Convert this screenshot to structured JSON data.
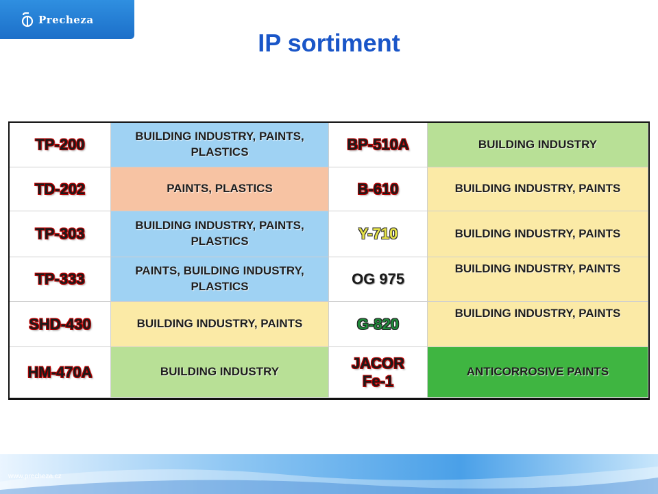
{
  "logo": {
    "text": "Precheza"
  },
  "title": "IP sortiment",
  "table": {
    "rows": [
      {
        "left_code": "TP-200",
        "left_use": "BUILDING INDUSTRY, PAINTS, PLASTICS",
        "left_color": "#9fd2f3",
        "right_code": "BP-510A",
        "right_use": "BUILDING INDUSTRY",
        "right_color": "#b8e096"
      },
      {
        "left_code": "TD-202",
        "left_use": "PAINTS, PLASTICS",
        "left_color": "#f7c3a3",
        "right_code": "B-610",
        "right_use": "BUILDING INDUSTRY, PAINTS",
        "right_color": "#fbeaa6"
      },
      {
        "left_code": "TP-303",
        "left_use": "BUILDING INDUSTRY, PAINTS, PLASTICS",
        "left_color": "#9fd2f3",
        "right_code": "Y-710",
        "right_use": "BUILDING INDUSTRY, PAINTS",
        "right_color": "#fbeaa6"
      },
      {
        "left_code": "TP-333",
        "left_use": "PAINTS, BUILDING INDUSTRY, PLASTICS",
        "left_color": "#9fd2f3",
        "right_code": "OG 975",
        "right_use": "BUILDING INDUSTRY, PAINTS",
        "right_color": "#fbeaa6"
      },
      {
        "left_code": "SHD-430",
        "left_use": "BUILDING INDUSTRY, PAINTS",
        "left_color": "#fbeaa6",
        "right_code": "G-820",
        "right_use": "BUILDING INDUSTRY, PAINTS",
        "right_color": "#fbeaa6"
      },
      {
        "left_code": "HM-470A",
        "left_use": "BUILDING INDUSTRY",
        "left_color": "#b8e096",
        "right_code": "JACOR Fe-1",
        "right_use": "ANTICORROSIVE PAINTS",
        "right_color": "#3fb541"
      }
    ]
  },
  "footer": {
    "url": "www.precheza.cz"
  }
}
